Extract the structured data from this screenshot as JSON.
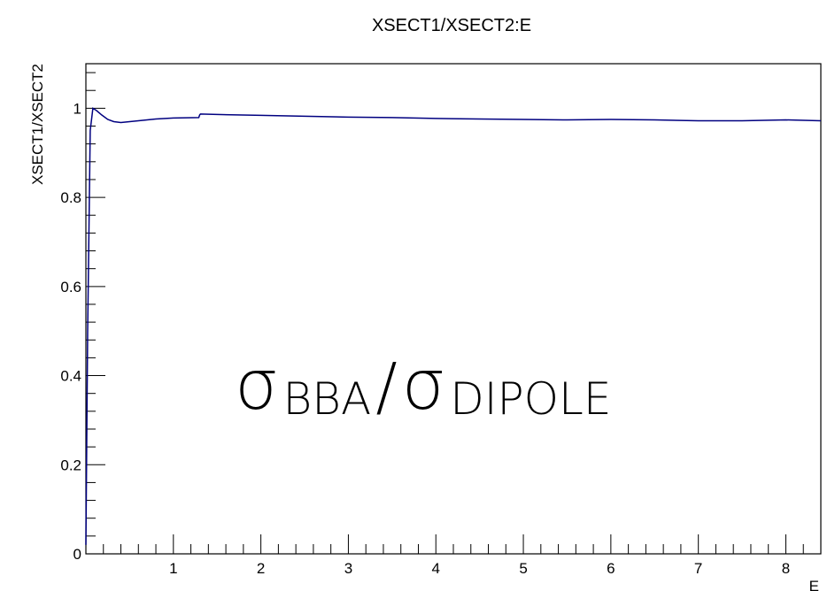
{
  "chart_data": {
    "type": "line",
    "title": "XSECT1/XSECT2:E",
    "xlabel": "E",
    "ylabel": "XSECT1/XSECT2",
    "xlim": [
      0.0,
      8.4
    ],
    "ylim": [
      0.0,
      1.1
    ],
    "x_ticks": [
      1,
      2,
      3,
      4,
      5,
      6,
      7,
      8
    ],
    "y_ticks": [
      0,
      0.2,
      0.4,
      0.6,
      0.8,
      1
    ],
    "grid": false,
    "series": [
      {
        "color": "#000080",
        "x": [
          0.0,
          0.02,
          0.05,
          0.08,
          0.12,
          0.18,
          0.25,
          0.32,
          0.4,
          0.5,
          0.6,
          0.8,
          1.0,
          1.29,
          1.3,
          1.31,
          1.5,
          2.0,
          2.5,
          3.0,
          3.5,
          4.0,
          4.5,
          5.0,
          5.5,
          6.0,
          6.5,
          7.0,
          7.5,
          8.0,
          8.4
        ],
        "y": [
          0.02,
          0.5,
          0.95,
          1.0,
          0.995,
          0.985,
          0.975,
          0.97,
          0.968,
          0.97,
          0.972,
          0.976,
          0.978,
          0.979,
          0.985,
          0.987,
          0.986,
          0.984,
          0.982,
          0.98,
          0.979,
          0.977,
          0.976,
          0.975,
          0.974,
          0.975,
          0.974,
          0.972,
          0.972,
          0.974,
          0.972
        ]
      }
    ]
  },
  "annotation": {
    "sigma_symbol": "σ",
    "numerator_sub": "BBA",
    "slash": "/",
    "denominator_sub": "DIPOLE"
  }
}
